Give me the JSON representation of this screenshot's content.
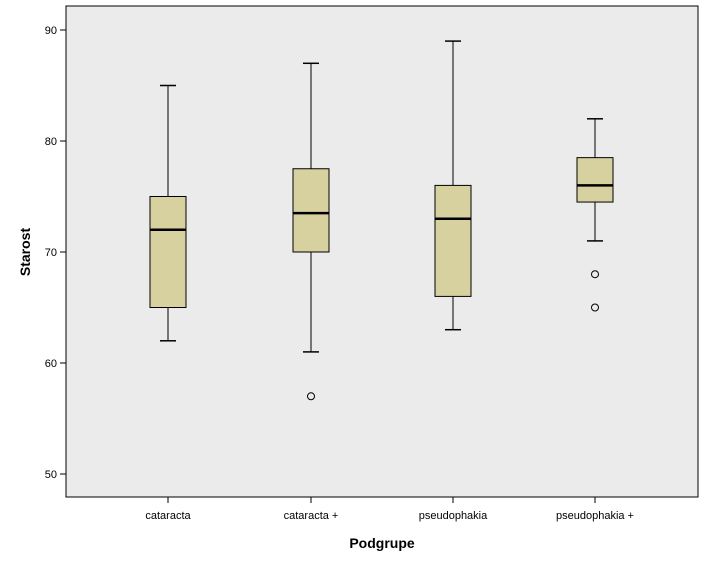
{
  "chart_data": {
    "type": "boxplot",
    "xlabel": "Podgrupe",
    "ylabel": "Starost",
    "ylim": [
      48,
      92
    ],
    "yticks": [
      50,
      60,
      70,
      80,
      90
    ],
    "grid": false,
    "colors": {
      "plot_bg": "#ebebeb",
      "box_fill": "#d7d19f",
      "stroke": "#000000"
    },
    "groups": [
      {
        "name": "cataracta",
        "whisker_low": 62,
        "q1": 65,
        "median": 72,
        "q3": 75,
        "whisker_high": 85,
        "outliers": []
      },
      {
        "name": "cataracta +",
        "whisker_low": 61,
        "q1": 70,
        "median": 73.5,
        "q3": 77.5,
        "whisker_high": 87,
        "outliers": [
          57
        ]
      },
      {
        "name": "pseudophakia",
        "whisker_low": 63,
        "q1": 66,
        "median": 73,
        "q3": 76,
        "whisker_high": 89,
        "outliers": []
      },
      {
        "name": "pseudophakia +",
        "whisker_low": 71,
        "q1": 74.5,
        "median": 76,
        "q3": 78.5,
        "whisker_high": 82,
        "outliers": [
          68,
          65
        ]
      }
    ]
  }
}
